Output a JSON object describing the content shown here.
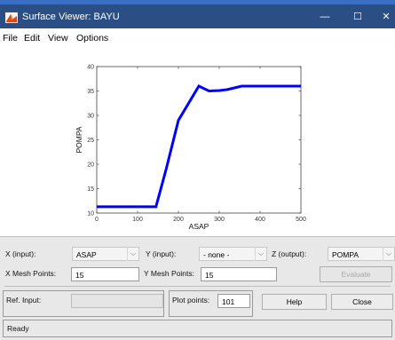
{
  "window": {
    "title": "Surface Viewer: BAYU",
    "minimize_glyph": "—",
    "maximize_glyph": "☐",
    "close_glyph": "✕"
  },
  "menu": {
    "items": [
      "File",
      "Edit",
      "View",
      "Options"
    ]
  },
  "chart_data": {
    "type": "line",
    "xlabel": "ASAP",
    "ylabel": "POMPA",
    "xlim": [
      0,
      500
    ],
    "ylim": [
      10,
      40
    ],
    "xticks": [
      0,
      100,
      200,
      300,
      400,
      500
    ],
    "yticks": [
      10,
      15,
      20,
      25,
      30,
      35,
      40
    ],
    "grid": false,
    "color": "#0000ff",
    "x": [
      0,
      145,
      170,
      200,
      250,
      275,
      300,
      320,
      355,
      500
    ],
    "y": [
      11.3,
      11.3,
      19.0,
      29.0,
      36.0,
      35.0,
      35.1,
      35.3,
      36.0,
      36.0
    ]
  },
  "controls": {
    "x_input_label": "X (input):",
    "x_input_value": "ASAP",
    "y_input_label": "Y (input):",
    "y_input_value": "- none -",
    "z_output_label": "Z (output):",
    "z_output_value": "POMPA",
    "x_mesh_label": "X Mesh Points:",
    "x_mesh_value": "15",
    "y_mesh_label": "Y Mesh Points:",
    "y_mesh_value": "15",
    "evaluate_label": "Evaluate",
    "ref_input_label": "Ref. Input:",
    "ref_input_value": "",
    "plot_points_label": "Plot points:",
    "plot_points_value": "101",
    "help_label": "Help",
    "close_label": "Close",
    "dropdown_glyph": "⌵"
  },
  "status": {
    "text": "Ready"
  },
  "colors": {
    "titlebar": "#2b4f85",
    "line": "#0000ff",
    "panel": "#e8e8e8"
  }
}
